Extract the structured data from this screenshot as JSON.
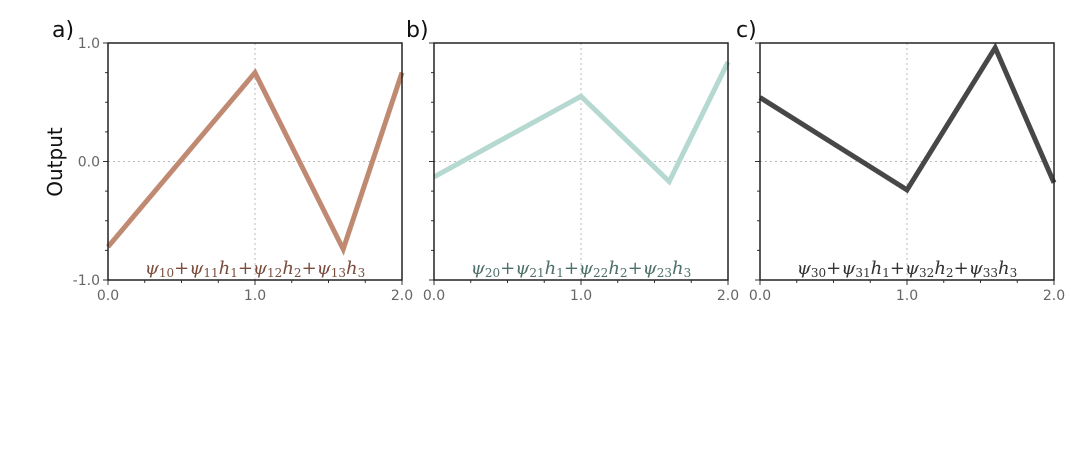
{
  "figure": {
    "ylabel": "Output"
  },
  "chart_data": [
    {
      "type": "line",
      "panel_label": "a)",
      "x": [
        0.0,
        1.0,
        1.6,
        2.0
      ],
      "series": [
        {
          "values": [
            -0.72,
            0.75,
            -0.74,
            0.75
          ],
          "color": "#c08a72"
        }
      ],
      "annotation": {
        "parts": [
          "ψ",
          "10",
          "+ψ",
          "11",
          "h",
          "1",
          "+ψ",
          "12",
          "h",
          "2",
          "+ψ",
          "13",
          "h",
          "3"
        ],
        "color": "#7a4e3e"
      },
      "xlim": [
        0,
        2
      ],
      "ylim": [
        -1,
        1
      ],
      "xticks": [
        0,
        1,
        2
      ],
      "xtick_labels": [
        "0.0",
        "1.0",
        "2.0"
      ],
      "yticks": [
        -1,
        0,
        1
      ],
      "ytick_labels": [
        "-1.0",
        "0.0",
        "1.0"
      ],
      "grid": true
    },
    {
      "type": "line",
      "panel_label": "b)",
      "x": [
        0.0,
        1.0,
        1.6,
        2.0
      ],
      "series": [
        {
          "values": [
            -0.13,
            0.55,
            -0.17,
            0.84
          ],
          "color": "#b5d8d1"
        }
      ],
      "annotation": {
        "parts": [
          "ψ",
          "20",
          "+ψ",
          "21",
          "h",
          "1",
          "+ψ",
          "22",
          "h",
          "2",
          "+ψ",
          "23",
          "h",
          "3"
        ],
        "color": "#4f706a"
      },
      "xlim": [
        0,
        2
      ],
      "ylim": [
        -1,
        1
      ],
      "xticks": [
        0,
        1,
        2
      ],
      "xtick_labels": [
        "0.0",
        "1.0",
        "2.0"
      ],
      "yticks": [
        -1,
        0,
        1
      ],
      "ytick_labels": [
        "",
        "",
        ""
      ],
      "grid": true
    },
    {
      "type": "line",
      "panel_label": "c)",
      "x": [
        0.0,
        1.0,
        1.6,
        2.0
      ],
      "series": [
        {
          "values": [
            0.54,
            -0.24,
            0.96,
            -0.18
          ],
          "color": "#474747"
        }
      ],
      "annotation": {
        "parts": [
          "ψ",
          "30",
          "+ψ",
          "31",
          "h",
          "1",
          "+ψ",
          "32",
          "h",
          "2",
          "+ψ",
          "33",
          "h",
          "3"
        ],
        "color": "#333333"
      },
      "xlim": [
        0,
        2
      ],
      "ylim": [
        -1,
        1
      ],
      "xticks": [
        0,
        1,
        2
      ],
      "xtick_labels": [
        "0.0",
        "1.0",
        "2.0"
      ],
      "yticks": [
        -1,
        0,
        1
      ],
      "ytick_labels": [
        "",
        "",
        ""
      ],
      "grid": true
    }
  ]
}
